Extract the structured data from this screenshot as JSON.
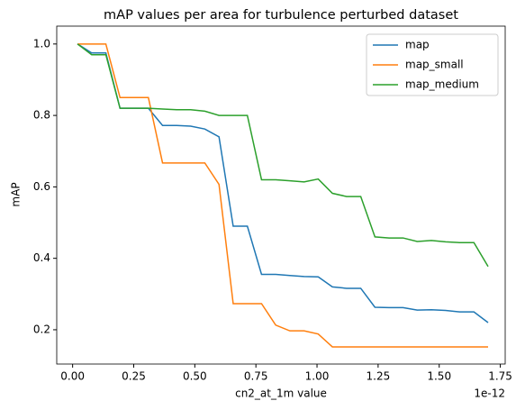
{
  "chart_data": {
    "type": "line",
    "title": "mAP values per area for turbulence perturbed dataset",
    "xlabel": "cn2_at_1m value",
    "x_offset_label": "1e-12",
    "ylabel": "mAP",
    "x": [
      0.02,
      0.078,
      0.136,
      0.194,
      0.252,
      0.31,
      0.368,
      0.426,
      0.483,
      0.541,
      0.599,
      0.657,
      0.715,
      0.773,
      0.831,
      0.889,
      0.947,
      1.005,
      1.063,
      1.121,
      1.179,
      1.237,
      1.295,
      1.352,
      1.41,
      1.468,
      1.526,
      1.584,
      1.642,
      1.7
    ],
    "series": [
      {
        "name": "map",
        "color": "#1f77b4",
        "values": [
          1.0,
          0.975,
          0.975,
          0.82,
          0.82,
          0.82,
          0.772,
          0.772,
          0.77,
          0.762,
          0.74,
          0.49,
          0.49,
          0.355,
          0.355,
          0.352,
          0.349,
          0.348,
          0.32,
          0.316,
          0.316,
          0.263,
          0.262,
          0.262,
          0.255,
          0.256,
          0.254,
          0.25,
          0.25,
          0.22
        ]
      },
      {
        "name": "map_small",
        "color": "#ff7f0e",
        "values": [
          1.0,
          1.0,
          1.0,
          0.85,
          0.85,
          0.85,
          0.667,
          0.667,
          0.667,
          0.667,
          0.607,
          0.273,
          0.273,
          0.273,
          0.213,
          0.197,
          0.197,
          0.188,
          0.152,
          0.152,
          0.152,
          0.152,
          0.152,
          0.152,
          0.152,
          0.152,
          0.152,
          0.152,
          0.152,
          0.152
        ]
      },
      {
        "name": "map_medium",
        "color": "#2ca02c",
        "values": [
          1.0,
          0.97,
          0.97,
          0.82,
          0.82,
          0.82,
          0.818,
          0.816,
          0.816,
          0.812,
          0.8,
          0.8,
          0.8,
          0.62,
          0.62,
          0.617,
          0.614,
          0.622,
          0.582,
          0.573,
          0.573,
          0.46,
          0.457,
          0.457,
          0.447,
          0.45,
          0.446,
          0.444,
          0.444,
          0.377
        ]
      }
    ],
    "xlim": [
      -0.065,
      1.77
    ],
    "ylim": [
      0.104,
      1.05
    ],
    "xticks": [
      {
        "value": 0,
        "label": "0.00"
      },
      {
        "value": 0.25,
        "label": "0.25"
      },
      {
        "value": 0.5,
        "label": "0.50"
      },
      {
        "value": 0.75,
        "label": "0.75"
      },
      {
        "value": 1,
        "label": "1.00"
      },
      {
        "value": 1.25,
        "label": "1.25"
      },
      {
        "value": 1.5,
        "label": "1.50"
      },
      {
        "value": 1.75,
        "label": "1.75"
      }
    ],
    "yticks": [
      0.2,
      0.4,
      0.6,
      0.8,
      {
        "value": 1,
        "label": "1.0"
      }
    ],
    "legend": "upper-right"
  }
}
